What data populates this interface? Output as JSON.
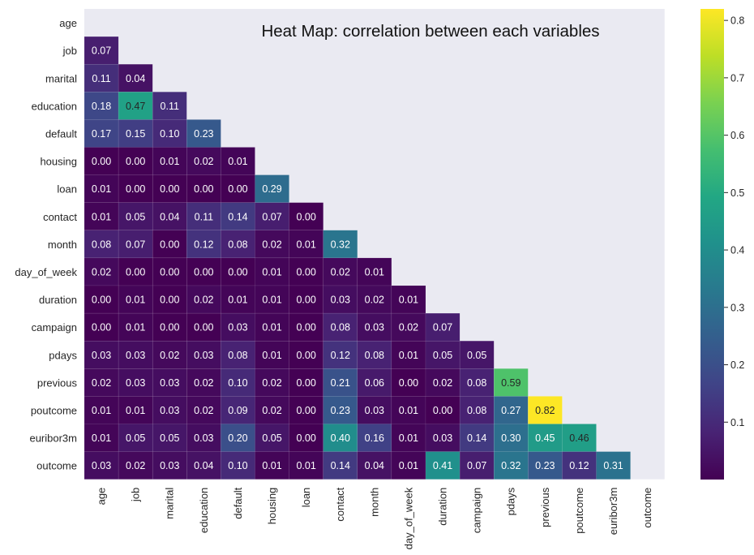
{
  "chart_data": {
    "type": "heatmap",
    "title": "Heat Map: correlation between each variables",
    "variables": [
      "age",
      "job",
      "marital",
      "education",
      "default",
      "housing",
      "loan",
      "contact",
      "month",
      "day_of_week",
      "duration",
      "campaign",
      "pdays",
      "previous",
      "poutcome",
      "euribor3m",
      "outcome"
    ],
    "rows": [
      [],
      [
        "0.07"
      ],
      [
        "0.11",
        "0.04"
      ],
      [
        "0.18",
        "0.47",
        "0.11"
      ],
      [
        "0.17",
        "0.15",
        "0.10",
        "0.23"
      ],
      [
        "0.00",
        "0.00",
        "0.01",
        "0.02",
        "0.01"
      ],
      [
        "0.01",
        "0.00",
        "0.00",
        "0.00",
        "0.00",
        "0.29"
      ],
      [
        "0.01",
        "0.05",
        "0.04",
        "0.11",
        "0.14",
        "0.07",
        "0.00"
      ],
      [
        "0.08",
        "0.07",
        "0.00",
        "0.12",
        "0.08",
        "0.02",
        "0.01",
        "0.32"
      ],
      [
        "0.02",
        "0.00",
        "0.00",
        "0.00",
        "0.00",
        "0.01",
        "0.00",
        "0.02",
        "0.01"
      ],
      [
        "0.00",
        "0.01",
        "0.00",
        "0.02",
        "0.01",
        "0.01",
        "0.00",
        "0.03",
        "0.02",
        "0.01"
      ],
      [
        "0.00",
        "0.01",
        "0.00",
        "0.00",
        "0.03",
        "0.01",
        "0.00",
        "0.08",
        "0.03",
        "0.02",
        "0.07"
      ],
      [
        "0.03",
        "0.03",
        "0.02",
        "0.03",
        "0.08",
        "0.01",
        "0.00",
        "0.12",
        "0.08",
        "0.01",
        "0.05",
        "0.05"
      ],
      [
        "0.02",
        "0.03",
        "0.03",
        "0.02",
        "0.10",
        "0.02",
        "0.00",
        "0.21",
        "0.06",
        "0.00",
        "0.02",
        "0.08",
        "0.59"
      ],
      [
        "0.01",
        "0.01",
        "0.03",
        "0.02",
        "0.09",
        "0.02",
        "0.00",
        "0.23",
        "0.03",
        "0.01",
        "0.00",
        "0.08",
        "0.27",
        "0.82"
      ],
      [
        "0.01",
        "0.05",
        "0.05",
        "0.03",
        "0.20",
        "0.05",
        "0.00",
        "0.40",
        "0.16",
        "0.01",
        "0.03",
        "0.14",
        "0.30",
        "0.45",
        "0.46"
      ],
      [
        "0.03",
        "0.02",
        "0.03",
        "0.04",
        "0.10",
        "0.01",
        "0.01",
        "0.14",
        "0.04",
        "0.01",
        "0.41",
        "0.07",
        "0.32",
        "0.23",
        "0.12",
        "0.31"
      ]
    ],
    "colorbar": {
      "ticks": [
        "0.1",
        "0.2",
        "0.3",
        "0.4",
        "0.5",
        "0.6",
        "0.7",
        "0.8"
      ],
      "min": 0.0,
      "max": 0.82,
      "colormap": "viridis"
    }
  }
}
